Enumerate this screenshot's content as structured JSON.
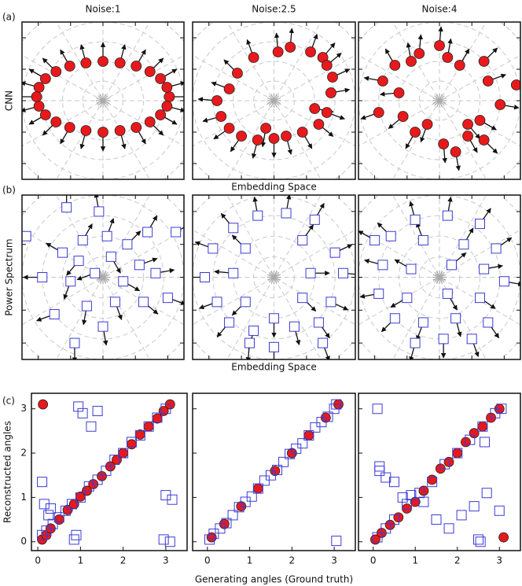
{
  "chart_data": [
    {
      "type": "quiver",
      "panel_label": "(a)",
      "title": "Noise:1",
      "ylabel": "CNN",
      "marker": "circle",
      "color": "#e8191c",
      "xlim": [
        -1,
        1
      ],
      "ylim": [
        -1,
        1
      ],
      "xticks": [
        -0.8,
        -0.4,
        0,
        0.4,
        0.8
      ],
      "yticks": [
        -0.8,
        -0.4,
        0,
        0.4,
        0.8
      ],
      "x": [
        0.82,
        0.79,
        0.71,
        0.58,
        0.41,
        0.21,
        0,
        -0.21,
        -0.41,
        -0.58,
        -0.71,
        -0.79,
        -0.82,
        -0.79,
        -0.71,
        -0.58,
        -0.41,
        -0.21,
        0,
        0.21,
        0.41,
        0.58,
        0.71,
        0.79
      ],
      "y": [
        0.05,
        0.17,
        0.28,
        0.37,
        0.44,
        0.48,
        0.5,
        0.48,
        0.44,
        0.37,
        0.28,
        0.17,
        0.05,
        -0.07,
        -0.18,
        -0.27,
        -0.34,
        -0.38,
        -0.4,
        -0.38,
        -0.34,
        -0.27,
        -0.18,
        -0.07
      ],
      "angles": [
        0,
        15,
        30,
        45,
        60,
        75,
        90,
        105,
        120,
        135,
        150,
        165,
        180,
        195,
        210,
        225,
        240,
        255,
        270,
        285,
        300,
        315,
        330,
        345
      ]
    },
    {
      "type": "quiver",
      "title": "Noise:2.5",
      "xlabel": "Embedding Space",
      "marker": "circle",
      "color": "#e8191c",
      "xlim": [
        -1,
        1
      ],
      "ylim": [
        -1,
        1
      ],
      "xticks": [
        -0.8,
        -0.4,
        0,
        0.4,
        0.8
      ],
      "yticks": [
        -0.8,
        -0.4,
        0,
        0.4,
        0.8
      ],
      "x": [
        0.7,
        0.72,
        0.6,
        0.45,
        0.2,
        0.05,
        -0.25,
        -0.45,
        -0.55,
        -0.7,
        -0.65,
        -0.55,
        -0.4,
        -0.2,
        0,
        0.15,
        0.35,
        0.55,
        0.65,
        0.65,
        -0.1,
        0.5
      ],
      "y": [
        0.1,
        0.3,
        0.55,
        0.62,
        0.68,
        0.62,
        0.55,
        0.35,
        0.15,
        0,
        -0.2,
        -0.35,
        -0.45,
        -0.5,
        -0.48,
        -0.45,
        -0.4,
        -0.3,
        -0.15,
        0.45,
        -0.35,
        -0.1
      ],
      "angles": [
        10,
        25,
        50,
        70,
        85,
        95,
        110,
        135,
        160,
        175,
        195,
        215,
        235,
        255,
        270,
        285,
        300,
        320,
        340,
        40,
        260,
        350
      ]
    },
    {
      "type": "quiver",
      "title": "Noise:4",
      "marker": "circle",
      "color": "#e8191c",
      "xlim": [
        -1,
        1
      ],
      "ylim": [
        -1,
        1
      ],
      "xticks": [
        -0.8,
        -0.4,
        0,
        0.4,
        0.8
      ],
      "yticks": [
        -0.8,
        -0.4,
        0,
        0.4,
        0.8
      ],
      "x": [
        -0.55,
        -0.35,
        -0.25,
        -0.7,
        -0.5,
        -0.75,
        -0.45,
        -0.3,
        -0.15,
        0.05,
        0.2,
        0.35,
        0.55,
        0.5,
        0.75,
        0.95,
        0.6,
        0.55,
        0.25,
        0,
        0.1,
        0.35
      ],
      "y": [
        0.45,
        0.5,
        0.6,
        0.25,
        0.1,
        -0.15,
        -0.2,
        -0.4,
        -0.3,
        -0.55,
        -0.65,
        -0.45,
        -0.5,
        -0.25,
        -0.05,
        0.2,
        0.25,
        0.5,
        0.45,
        0.7,
        0.55,
        -0.3
      ],
      "angles": [
        120,
        100,
        85,
        170,
        185,
        200,
        220,
        240,
        250,
        275,
        280,
        300,
        315,
        330,
        350,
        5,
        20,
        45,
        60,
        85,
        80,
        310
      ]
    },
    {
      "type": "quiver",
      "panel_label": "(b)",
      "ylabel": "Power Spectrum",
      "marker": "square",
      "color": "#3b3bd6",
      "xlim": [
        -1,
        1
      ],
      "ylim": [
        -1,
        1
      ],
      "xticks": [
        -0.8,
        -0.4,
        0,
        0.4,
        0.8
      ],
      "yticks": [
        -0.8,
        -0.4,
        0,
        0.4,
        0.8
      ],
      "x": [
        -0.45,
        -0.95,
        -0.25,
        0.05,
        0.3,
        0.9,
        -0.5,
        -0.3,
        0.1,
        0.45,
        -0.75,
        -0.4,
        -0.1,
        0.25,
        0.65,
        -0.6,
        -0.2,
        0.15,
        0.5,
        0.8,
        -0.35,
        0,
        -0.05,
        0.55
      ],
      "y": [
        0.85,
        0.5,
        0.45,
        0.5,
        0.4,
        0.55,
        0.3,
        0.2,
        0.25,
        0.15,
        0,
        -0.05,
        0.05,
        -0.05,
        0.05,
        -0.45,
        -0.35,
        -0.3,
        -0.3,
        -0.25,
        -0.8,
        -0.6,
        0.8,
        0.55
      ],
      "angles": [
        90,
        140,
        60,
        70,
        45,
        30,
        150,
        230,
        300,
        20,
        180,
        250,
        200,
        330,
        10,
        200,
        260,
        290,
        320,
        340,
        270,
        280,
        100,
        60
      ]
    },
    {
      "type": "quiver",
      "xlabel": "Embedding Space",
      "marker": "square",
      "color": "#3b3bd6",
      "xlim": [
        -1,
        1
      ],
      "ylim": [
        -1,
        1
      ],
      "xticks": [
        -0.8,
        -0.4,
        0,
        0.4,
        0.8
      ],
      "yticks": [
        -0.8,
        -0.4,
        0,
        0.4,
        0.8
      ],
      "x": [
        -0.2,
        0.15,
        0.5,
        -0.5,
        0.35,
        -0.75,
        -0.35,
        0.75,
        -0.85,
        -0.5,
        0.45,
        0.85,
        -0.7,
        -0.35,
        0.35,
        0.7,
        -0.55,
        -0.25,
        0,
        0.25,
        0.55,
        -0.3,
        0,
        0.6
      ],
      "y": [
        0.75,
        0.78,
        0.7,
        0.6,
        0.45,
        0.35,
        0.35,
        0.3,
        0,
        0.05,
        0.05,
        0.05,
        -0.3,
        -0.3,
        -0.25,
        -0.3,
        -0.55,
        -0.65,
        -0.5,
        -0.6,
        -0.55,
        -0.8,
        -0.85,
        -0.8
      ],
      "angles": [
        100,
        80,
        60,
        130,
        55,
        160,
        135,
        25,
        180,
        175,
        0,
        355,
        200,
        225,
        315,
        335,
        230,
        255,
        270,
        285,
        305,
        265,
        270,
        290
      ]
    },
    {
      "type": "quiver",
      "marker": "square",
      "color": "#3b3bd6",
      "xlim": [
        -1,
        1
      ],
      "ylim": [
        -1,
        1
      ],
      "xticks": [
        -0.8,
        -0.4,
        0,
        0.4,
        0.8
      ],
      "yticks": [
        -0.8,
        -0.4,
        0,
        0.4,
        0.8
      ],
      "x": [
        -0.3,
        0.1,
        0.5,
        -0.6,
        -0.2,
        0.3,
        0.7,
        -0.7,
        -0.35,
        0.15,
        0.55,
        0.8,
        -0.75,
        -0.4,
        0.1,
        0.5,
        -0.55,
        -0.2,
        0.2,
        0.6,
        -0.3,
        0.05,
        0.4,
        -0.8
      ],
      "y": [
        0.7,
        0.75,
        0.65,
        0.5,
        0.45,
        0.4,
        0.35,
        0.15,
        0.1,
        0.15,
        0.1,
        -0.05,
        -0.2,
        -0.25,
        -0.2,
        -0.25,
        -0.5,
        -0.55,
        -0.5,
        -0.55,
        -0.8,
        -0.75,
        -0.75,
        0.45
      ],
      "angles": [
        105,
        80,
        55,
        135,
        110,
        60,
        35,
        165,
        150,
        40,
        10,
        350,
        190,
        210,
        300,
        325,
        225,
        250,
        285,
        305,
        255,
        270,
        290,
        150
      ]
    },
    {
      "type": "scatter",
      "panel_label": "(c)",
      "ylabel": "Reconstructed angles",
      "ytick_labels": true,
      "xlim": [
        -0.15,
        3.5
      ],
      "ylim": [
        -0.2,
        3.35
      ],
      "xticks": [
        0,
        1,
        2,
        3
      ],
      "yticks": [
        0,
        1,
        2,
        3
      ],
      "series": [
        {
          "marker": "circle",
          "color": "#e8191c",
          "x": [
            0.12,
            0.1,
            0.2,
            0.3,
            0.5,
            0.7,
            0.85,
            1.0,
            1.15,
            1.3,
            1.5,
            1.7,
            1.85,
            2.0,
            2.2,
            2.4,
            2.6,
            2.8,
            2.95,
            3.1
          ],
          "values": [
            3.1,
            0.05,
            0.15,
            0.3,
            0.5,
            0.72,
            0.85,
            1.02,
            1.15,
            1.3,
            1.48,
            1.7,
            1.85,
            2.0,
            2.2,
            2.42,
            2.6,
            2.78,
            2.95,
            3.1
          ]
        },
        {
          "marker": "square",
          "color": "#3b3bd6",
          "x": [
            0.1,
            0.2,
            0.35,
            0.5,
            0.65,
            0.8,
            1.0,
            1.2,
            1.4,
            1.6,
            1.8,
            2.0,
            2.2,
            2.4,
            2.6,
            2.8,
            3.0,
            0.95,
            1.05,
            1.4,
            1.25,
            0.1,
            0.15,
            0.3,
            0.25,
            0.9,
            0.85,
            3.0,
            3.15,
            2.95,
            3.1
          ],
          "values": [
            0.15,
            0.25,
            0.4,
            0.55,
            0.7,
            0.85,
            1.0,
            1.25,
            1.4,
            1.6,
            1.85,
            2.0,
            2.25,
            2.4,
            2.6,
            2.8,
            3.0,
            3.05,
            2.9,
            2.95,
            2.6,
            1.35,
            0.85,
            0.75,
            0.6,
            0.15,
            0.05,
            1.05,
            0.95,
            0.05,
            0.0
          ]
        }
      ]
    },
    {
      "type": "scatter",
      "xlabel": "Generating angles (Ground truth)",
      "ytick_labels": false,
      "xlim": [
        -0.35,
        3.5
      ],
      "ylim": [
        -0.2,
        3.35
      ],
      "xticks": [
        0,
        1,
        2,
        3
      ],
      "yticks": [
        0,
        1,
        2,
        3
      ],
      "series": [
        {
          "marker": "circle",
          "color": "#e8191c",
          "x": [
            0.1,
            0.4,
            0.8,
            1.2,
            1.6,
            2.0,
            2.4,
            2.8,
            3.1
          ],
          "values": [
            0.1,
            0.4,
            0.8,
            1.2,
            1.6,
            2.0,
            2.4,
            2.8,
            3.1
          ]
        },
        {
          "marker": "square",
          "color": "#3b3bd6",
          "x": [
            0.05,
            0.15,
            0.3,
            0.45,
            0.6,
            0.75,
            0.9,
            1.05,
            1.2,
            1.35,
            1.5,
            1.65,
            1.8,
            1.95,
            2.1,
            2.25,
            2.4,
            2.55,
            2.7,
            2.85,
            3.0,
            3.05,
            3.05
          ],
          "values": [
            0.05,
            0.18,
            0.3,
            0.42,
            0.6,
            0.78,
            0.9,
            1.02,
            1.2,
            1.38,
            1.5,
            1.62,
            1.8,
            1.98,
            2.1,
            2.22,
            2.4,
            2.58,
            2.7,
            2.82,
            3.0,
            3.1,
            0.02
          ]
        }
      ]
    },
    {
      "type": "scatter",
      "ytick_labels": false,
      "xlim": [
        -0.35,
        3.5
      ],
      "ylim": [
        -0.2,
        3.35
      ],
      "xticks": [
        0,
        1,
        2,
        3
      ],
      "yticks": [
        0,
        1,
        2,
        3
      ],
      "series": [
        {
          "marker": "circle",
          "color": "#e8191c",
          "x": [
            0.05,
            0.2,
            0.4,
            0.6,
            0.8,
            1.0,
            1.2,
            1.4,
            1.6,
            1.8,
            2.0,
            2.2,
            2.4,
            2.6,
            2.8,
            3.0,
            3.1
          ],
          "values": [
            0.05,
            0.2,
            0.38,
            0.55,
            0.75,
            0.9,
            1.15,
            1.4,
            1.65,
            1.8,
            2.0,
            2.25,
            2.45,
            2.6,
            2.8,
            3.0,
            0.1
          ]
        },
        {
          "marker": "square",
          "color": "#3b3bd6",
          "x": [
            0.1,
            0.3,
            0.5,
            0.8,
            1.1,
            1.4,
            1.7,
            2.0,
            2.3,
            2.6,
            2.9,
            3.05,
            0.1,
            0.15,
            0.3,
            0.5,
            0.7,
            0.9,
            1.2,
            1.5,
            1.8,
            2.1,
            2.4,
            2.7,
            3.0,
            0.15,
            2.5,
            2.55,
            2.65
          ],
          "values": [
            0.1,
            0.3,
            0.5,
            0.85,
            1.1,
            1.35,
            1.75,
            2.0,
            2.3,
            2.6,
            2.9,
            3.0,
            3.0,
            1.7,
            1.45,
            1.35,
            1.0,
            1.05,
            0.9,
            0.5,
            0.3,
            0.6,
            0.8,
            1.1,
            0.7,
            1.6,
            0.05,
            0.0,
            2.25
          ]
        }
      ]
    }
  ]
}
